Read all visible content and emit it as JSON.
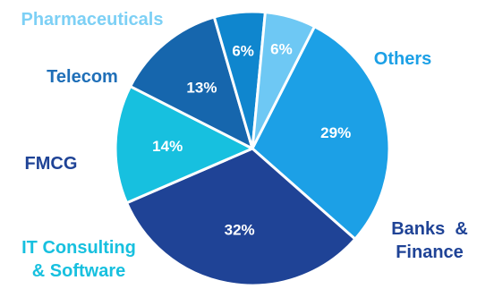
{
  "chart_data": {
    "type": "pie",
    "slices": [
      {
        "name": "Others",
        "value": 29,
        "label": "29%",
        "color": "#1ca0e6",
        "label_lines": [
          "Others"
        ],
        "label_color": "#1ca0e6"
      },
      {
        "name": "Banks & Finance",
        "value": 32,
        "label": "32%",
        "color": "#1f4396",
        "label_lines": [
          "Banks  &",
          "Finance"
        ],
        "label_color": "#1f4396"
      },
      {
        "name": "IT Consulting & Software",
        "value": 14,
        "label": "14%",
        "color": "#17c0df",
        "label_lines": [
          "IT Consulting",
          "& Software"
        ],
        "label_color": "#17c0df"
      },
      {
        "name": "FMCG",
        "value": 13,
        "label": "13%",
        "color": "#1666ad",
        "label_lines": [
          "FMCG"
        ],
        "label_color": "#1f4396"
      },
      {
        "name": "Telecom",
        "value": 6,
        "label": "6%",
        "color": "#0f86ce",
        "label_lines": [
          "Telecom"
        ],
        "label_color": "#1f6fb8"
      },
      {
        "name": "Pharmaceuticals",
        "value": 6,
        "label": "6%",
        "color": "#6ec8f4",
        "label_lines": [
          "Pharmaceuticals"
        ],
        "label_color": "#7dd0f5"
      }
    ],
    "start_angle_deg": 27,
    "legend": "none"
  }
}
